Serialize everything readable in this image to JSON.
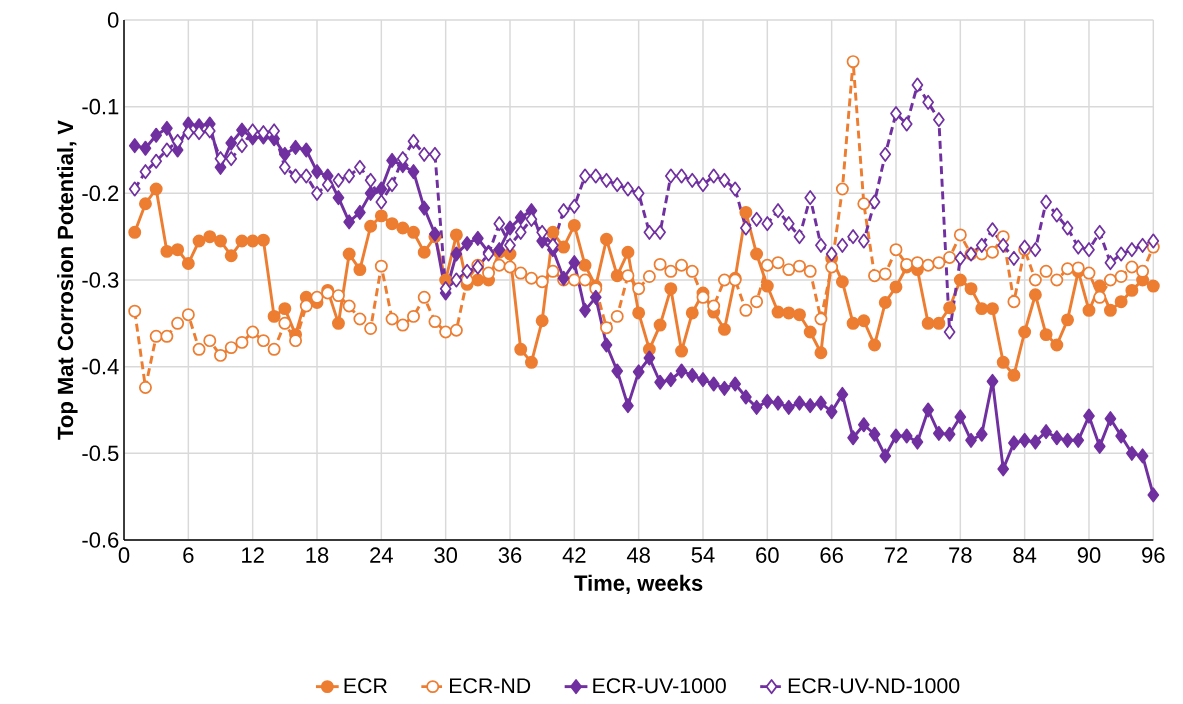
{
  "chart_data": {
    "type": "line",
    "xlabel": "Time, weeks",
    "ylabel": "Top Mat Corrosion Potential, V",
    "x": [
      1,
      2,
      3,
      4,
      5,
      6,
      7,
      8,
      9,
      10,
      11,
      12,
      13,
      14,
      15,
      16,
      17,
      18,
      19,
      20,
      21,
      22,
      23,
      24,
      25,
      26,
      27,
      28,
      29,
      30,
      31,
      32,
      33,
      34,
      35,
      36,
      37,
      38,
      39,
      40,
      41,
      42,
      43,
      44,
      45,
      46,
      47,
      48,
      49,
      50,
      51,
      52,
      53,
      54,
      55,
      56,
      57,
      58,
      59,
      60,
      61,
      62,
      63,
      64,
      65,
      66,
      67,
      68,
      69,
      70,
      71,
      72,
      73,
      74,
      75,
      76,
      77,
      78,
      79,
      80,
      81,
      82,
      83,
      84,
      85,
      86,
      87,
      88,
      89,
      90,
      91,
      92,
      93,
      94,
      95,
      96
    ],
    "series": [
      {
        "name": "ECR",
        "color": "#ed7d31",
        "marker": "circle",
        "line_style": "solid",
        "values": [
          -0.245,
          -0.212,
          -0.195,
          -0.267,
          -0.265,
          -0.281,
          -0.255,
          -0.25,
          -0.255,
          -0.272,
          -0.255,
          -0.255,
          -0.254,
          -0.342,
          -0.333,
          -0.363,
          -0.32,
          -0.326,
          -0.312,
          -0.35,
          -0.27,
          -0.288,
          -0.238,
          -0.226,
          -0.235,
          -0.24,
          -0.245,
          -0.268,
          -0.25,
          -0.3,
          -0.248,
          -0.305,
          -0.3,
          -0.3,
          -0.268,
          -0.27,
          -0.38,
          -0.395,
          -0.347,
          -0.245,
          -0.262,
          -0.237,
          -0.283,
          -0.307,
          -0.253,
          -0.295,
          -0.268,
          -0.338,
          -0.38,
          -0.352,
          -0.31,
          -0.382,
          -0.338,
          -0.315,
          -0.337,
          -0.357,
          -0.298,
          -0.222,
          -0.27,
          -0.307,
          -0.337,
          -0.338,
          -0.34,
          -0.36,
          -0.384,
          -0.275,
          -0.302,
          -0.35,
          -0.347,
          -0.375,
          -0.326,
          -0.308,
          -0.285,
          -0.288,
          -0.35,
          -0.35,
          -0.332,
          -0.3,
          -0.31,
          -0.333,
          -0.333,
          -0.395,
          -0.41,
          -0.36,
          -0.317,
          -0.363,
          -0.375,
          -0.346,
          -0.29,
          -0.335,
          -0.307,
          -0.335,
          -0.325,
          -0.312,
          -0.3,
          -0.307
        ]
      },
      {
        "name": "ECR-ND",
        "color": "#ed7d31",
        "marker": "circle",
        "line_style": "dashed",
        "values": [
          -0.336,
          -0.424,
          -0.365,
          -0.365,
          -0.35,
          -0.34,
          -0.38,
          -0.37,
          -0.387,
          -0.378,
          -0.372,
          -0.36,
          -0.37,
          -0.38,
          -0.35,
          -0.37,
          -0.33,
          -0.32,
          -0.315,
          -0.318,
          -0.33,
          -0.345,
          -0.356,
          -0.284,
          -0.345,
          -0.352,
          -0.342,
          -0.32,
          -0.348,
          -0.36,
          -0.358,
          -0.3,
          -0.283,
          -0.292,
          -0.283,
          -0.285,
          -0.292,
          -0.298,
          -0.302,
          -0.29,
          -0.3,
          -0.3,
          -0.3,
          -0.31,
          -0.355,
          -0.342,
          -0.295,
          -0.31,
          -0.296,
          -0.282,
          -0.29,
          -0.283,
          -0.29,
          -0.32,
          -0.33,
          -0.3,
          -0.3,
          -0.335,
          -0.325,
          -0.283,
          -0.28,
          -0.288,
          -0.284,
          -0.29,
          -0.345,
          -0.285,
          -0.195,
          -0.048,
          -0.212,
          -0.295,
          -0.293,
          -0.265,
          -0.282,
          -0.28,
          -0.283,
          -0.28,
          -0.274,
          -0.248,
          -0.27,
          -0.27,
          -0.268,
          -0.25,
          -0.325,
          -0.265,
          -0.3,
          -0.29,
          -0.3,
          -0.287,
          -0.286,
          -0.292,
          -0.32,
          -0.3,
          -0.296,
          -0.285,
          -0.29,
          -0.262
        ]
      },
      {
        "name": "ECR-UV-1000",
        "color": "#7030a0",
        "marker": "diamond",
        "line_style": "solid",
        "values": [
          -0.145,
          -0.148,
          -0.133,
          -0.125,
          -0.15,
          -0.12,
          -0.122,
          -0.12,
          -0.17,
          -0.142,
          -0.127,
          -0.136,
          -0.135,
          -0.137,
          -0.155,
          -0.147,
          -0.15,
          -0.175,
          -0.18,
          -0.205,
          -0.233,
          -0.222,
          -0.2,
          -0.195,
          -0.162,
          -0.168,
          -0.175,
          -0.217,
          -0.247,
          -0.315,
          -0.27,
          -0.258,
          -0.252,
          -0.268,
          -0.265,
          -0.24,
          -0.228,
          -0.22,
          -0.255,
          -0.265,
          -0.298,
          -0.28,
          -0.335,
          -0.32,
          -0.375,
          -0.405,
          -0.445,
          -0.406,
          -0.39,
          -0.418,
          -0.415,
          -0.405,
          -0.41,
          -0.415,
          -0.42,
          -0.425,
          -0.42,
          -0.435,
          -0.447,
          -0.44,
          -0.442,
          -0.447,
          -0.442,
          -0.445,
          -0.442,
          -0.452,
          -0.432,
          -0.482,
          -0.467,
          -0.478,
          -0.503,
          -0.48,
          -0.48,
          -0.487,
          -0.45,
          -0.477,
          -0.478,
          -0.458,
          -0.485,
          -0.478,
          -0.417,
          -0.518,
          -0.488,
          -0.485,
          -0.487,
          -0.475,
          -0.482,
          -0.485,
          -0.485,
          -0.457,
          -0.492,
          -0.46,
          -0.48,
          -0.5,
          -0.503,
          -0.548
        ]
      },
      {
        "name": "ECR-UV-ND-1000",
        "color": "#7030a0",
        "marker": "diamond",
        "line_style": "dashed",
        "values": [
          -0.195,
          -0.175,
          -0.163,
          -0.15,
          -0.14,
          -0.13,
          -0.13,
          -0.128,
          -0.16,
          -0.16,
          -0.145,
          -0.128,
          -0.13,
          -0.128,
          -0.17,
          -0.18,
          -0.18,
          -0.2,
          -0.19,
          -0.185,
          -0.18,
          -0.17,
          -0.185,
          -0.21,
          -0.19,
          -0.16,
          -0.14,
          -0.155,
          -0.155,
          -0.31,
          -0.3,
          -0.29,
          -0.285,
          -0.27,
          -0.235,
          -0.26,
          -0.245,
          -0.23,
          -0.245,
          -0.26,
          -0.22,
          -0.215,
          -0.18,
          -0.18,
          -0.185,
          -0.19,
          -0.195,
          -0.2,
          -0.245,
          -0.245,
          -0.18,
          -0.18,
          -0.185,
          -0.19,
          -0.18,
          -0.185,
          -0.195,
          -0.24,
          -0.23,
          -0.235,
          -0.22,
          -0.235,
          -0.25,
          -0.205,
          -0.26,
          -0.27,
          -0.26,
          -0.25,
          -0.255,
          -0.21,
          -0.155,
          -0.108,
          -0.12,
          -0.075,
          -0.095,
          -0.115,
          -0.36,
          -0.275,
          -0.27,
          -0.26,
          -0.242,
          -0.26,
          -0.275,
          -0.262,
          -0.265,
          -0.21,
          -0.225,
          -0.24,
          -0.262,
          -0.265,
          -0.245,
          -0.28,
          -0.27,
          -0.265,
          -0.26,
          -0.255
        ]
      }
    ],
    "xlim": [
      0,
      96
    ],
    "xticks": [
      0,
      6,
      12,
      18,
      24,
      30,
      36,
      42,
      48,
      54,
      60,
      66,
      72,
      78,
      84,
      90,
      96
    ],
    "ylim": [
      -0.6,
      0
    ],
    "yticks": [
      -0.6,
      -0.5,
      -0.4,
      -0.3,
      -0.2,
      -0.1,
      0
    ],
    "grid": true,
    "legend": "bottom"
  }
}
